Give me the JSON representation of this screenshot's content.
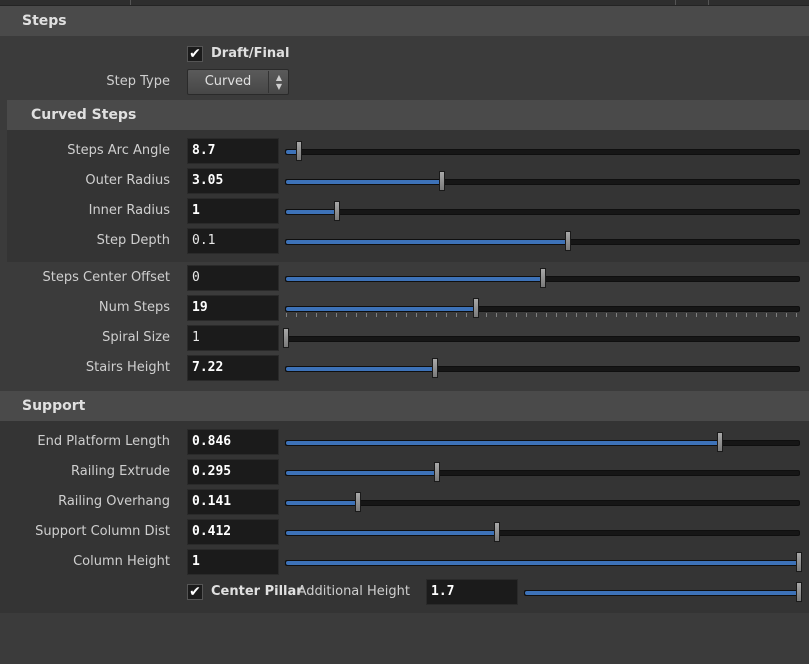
{
  "sections": {
    "steps": "Steps",
    "curved_steps": "Curved Steps",
    "support": "Support"
  },
  "draft_final": {
    "label": "Draft/Final",
    "checked": true,
    "mark": "✔"
  },
  "step_type": {
    "label": "Step Type",
    "value": "Curved",
    "arrow_up": "▲",
    "arrow_down": "▼"
  },
  "curved_params": [
    {
      "label": "Steps Arc Angle",
      "value": "8.7",
      "level": 0.025
    },
    {
      "label": "Outer Radius",
      "value": "3.05",
      "level": 0.305
    },
    {
      "label": "Inner Radius",
      "value": "1",
      "level": 0.1
    },
    {
      "label": "Step Depth",
      "value": "0.1",
      "level": 0.55
    }
  ],
  "general_params": [
    {
      "label": "Steps Center Offset",
      "value": "0",
      "level": 0.5
    },
    {
      "label": "Num Steps",
      "value": "19",
      "level": 0.37
    },
    {
      "label": "Spiral Size",
      "value": "1",
      "level": 0.0
    },
    {
      "label": "Stairs Height",
      "value": "7.22",
      "level": 0.29
    }
  ],
  "support_params": [
    {
      "label": "End Platform Length",
      "value": "0.846",
      "level": 0.846
    },
    {
      "label": "Railing Extrude",
      "value": "0.295",
      "level": 0.295
    },
    {
      "label": "Railing Overhang",
      "value": "0.141",
      "level": 0.141
    },
    {
      "label": "Support Column Dist",
      "value": "0.412",
      "level": 0.412
    },
    {
      "label": "Column Height",
      "value": "1",
      "level": 1.0
    }
  ],
  "center_pillar": {
    "label": "Center Pillar",
    "checked": true,
    "mark": "✔"
  },
  "additional_height": {
    "label": "Additional Height",
    "value": "1.7",
    "level": 1.0
  }
}
